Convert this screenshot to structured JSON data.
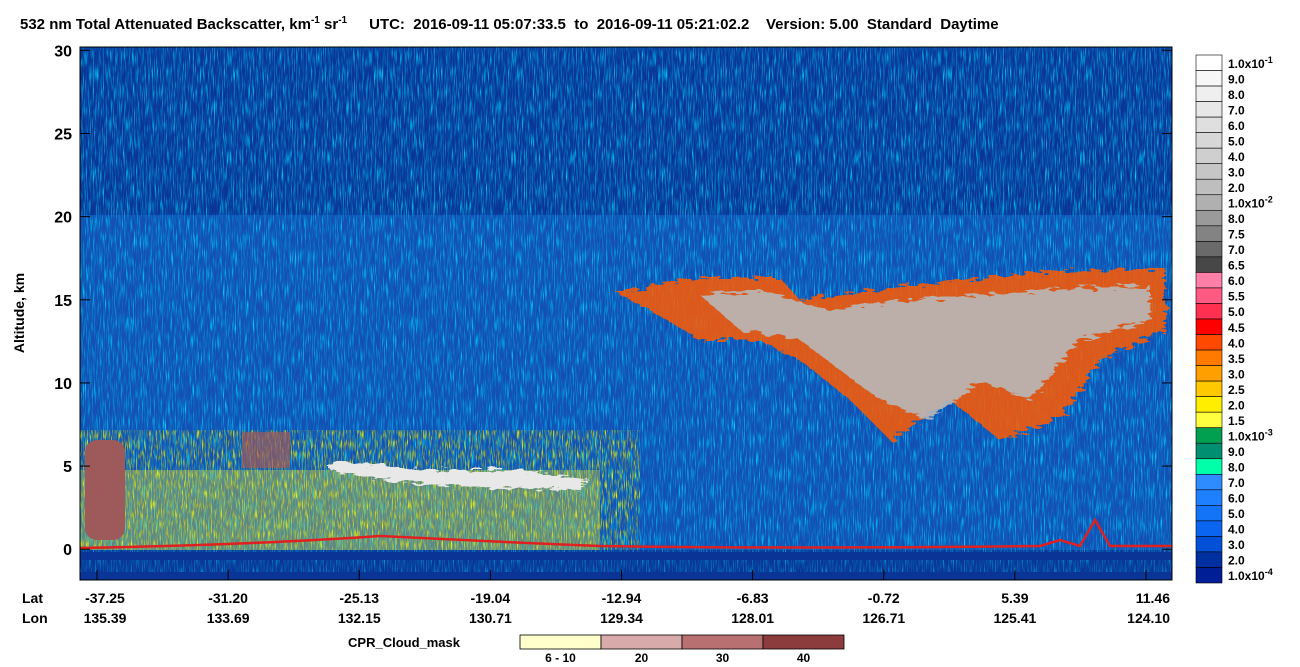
{
  "chart_data": {
    "type": "curtain",
    "title": {
      "main": "532 nm Total Attenuated Backscatter, km",
      "sup1": "-1",
      "unit2": " sr",
      "sup2": "-1",
      "info": "UTC:  2016-09-11 05:07:33.5  to  2016-09-11 05:21:02.2    Version: 5.00  Standard  Daytime"
    },
    "y_label": "Altitude, km",
    "ylim": [
      -1.85,
      30.2
    ],
    "yticks": [
      0,
      5,
      10,
      15,
      20,
      25,
      30
    ],
    "lat_label": "Lat",
    "lon_label": "Lon",
    "lat": [
      "-37.25",
      "-31.20",
      "-25.13",
      "-19.04",
      "-12.94",
      "-6.83",
      "-0.72",
      "5.39",
      "11.46"
    ],
    "lon": [
      "135.39",
      "133.69",
      "132.15",
      "130.71",
      "129.34",
      "128.01",
      "126.71",
      "125.41",
      "124.10"
    ],
    "colorbar": {
      "labels": [
        {
          "text": "1.0x10",
          "exponent": "-1"
        },
        "9.0",
        "8.0",
        "7.0",
        "6.0",
        "5.0",
        "4.0",
        "3.0",
        "2.0",
        {
          "text": "1.0x10",
          "exponent": "-2"
        },
        "8.0",
        "7.5",
        "7.0",
        "6.5",
        "6.0",
        "5.5",
        "5.0",
        "4.5",
        "4.0",
        "3.5",
        "3.0",
        "2.5",
        "2.0",
        "1.5",
        {
          "text": "1.0x10",
          "exponent": "-3"
        },
        "9.0",
        "8.0",
        "7.0",
        "6.0",
        "5.0",
        "4.0",
        "3.0",
        "2.0",
        {
          "text": "1.0x10",
          "exponent": "-4"
        }
      ],
      "colors": [
        "#ffffff",
        "#f7f7f7",
        "#efefef",
        "#e7e7e7",
        "#dfdfdf",
        "#d7d7d7",
        "#cfcfcf",
        "#c6c6c6",
        "#bebebe",
        "#b0b0b0",
        "#9a9a9a",
        "#838383",
        "#6a6a6a",
        "#474747",
        "#ff7fa8",
        "#ff5b82",
        "#ff3050",
        "#ff0000",
        "#ff4800",
        "#ff7a00",
        "#ff9f00",
        "#ffc800",
        "#ffee00",
        "#ffff40",
        "#00a050",
        "#008f70",
        "#00ffa8",
        "#2e8cff",
        "#1f80ff",
        "#1474f8",
        "#0a66f0",
        "#0050d8",
        "#0030a0",
        "#001e96"
      ]
    },
    "cpr_mask": {
      "title": "CPR_Cloud_mask",
      "labels": [
        "6 - 10",
        "20",
        "30",
        "40"
      ],
      "colors": [
        "#ffffcc",
        "#d9aaaa",
        "#b87070",
        "#8c3c3c"
      ]
    }
  }
}
